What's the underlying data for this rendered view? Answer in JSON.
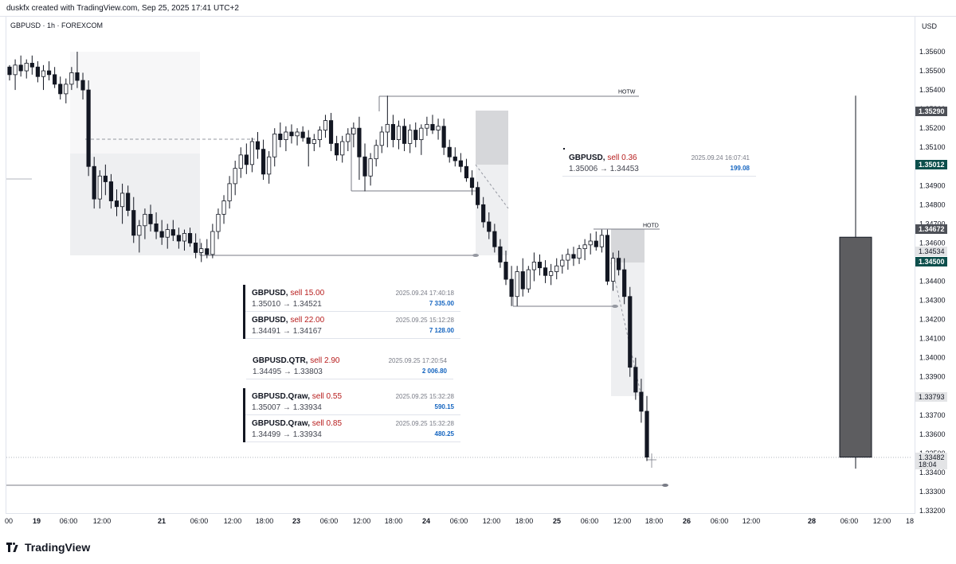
{
  "header": {
    "credit": "duskfx created with TradingView.com, Sep 25, 2025 17:41 UTC+2",
    "symbol_line": "GBPUSD · 1h · FOREXCOM",
    "currency": "USD"
  },
  "footer": {
    "brand": "TradingView"
  },
  "colors": {
    "up": "#ffffff",
    "down": "#131722",
    "red": "#b71c1c",
    "blue": "#1565c0",
    "price_tag": "#4d5057",
    "green_tag": "#0d4f4c"
  },
  "chart_data": {
    "type": "candlestick",
    "ylim": [
      1.3315,
      1.3572
    ],
    "y_ticks": [
      "1.35600",
      "1.35500",
      "1.35400",
      "1.35300",
      "1.35200",
      "1.35100",
      "1.35000",
      "1.34900",
      "1.34800",
      "1.34700",
      "1.34600",
      "1.34500",
      "1.34400",
      "1.34300",
      "1.34200",
      "1.34100",
      "1.34000",
      "1.33900",
      "1.33800",
      "1.33700",
      "1.33600",
      "1.33500",
      "1.33400",
      "1.33300",
      "1.33200"
    ],
    "x_labels": [
      "00",
      "19",
      "06:00",
      "12:00",
      "21",
      "06:00",
      "12:00",
      "18:00",
      "23",
      "06:00",
      "12:00",
      "18:00",
      "24",
      "06:00",
      "12:00",
      "18:00",
      "25",
      "06:00",
      "12:00",
      "18:00",
      "26",
      "06:00",
      "12:00",
      "28",
      "06:00",
      "12:00",
      "18"
    ],
    "price_tags": [
      {
        "text": "1.35290",
        "style": "dark"
      },
      {
        "text": "1.35012",
        "style": "green"
      },
      {
        "text": "1.34672",
        "style": "dark"
      },
      {
        "text": "1.34534",
        "style": "light"
      },
      {
        "text": "1.34500",
        "style": "green"
      },
      {
        "text": "1.33793",
        "style": "light"
      },
      {
        "text": "1.33482",
        "style": "light"
      },
      {
        "text": "18:04",
        "style": "light"
      }
    ],
    "level_labels": [
      {
        "text": "HOTW",
        "price": 1.3537
      },
      {
        "text": "HOTD",
        "price": 1.3467
      }
    ],
    "candles_phase1": [
      [
        1.3552,
        1.3553,
        1.3545,
        1.3548
      ],
      [
        1.3548,
        1.3556,
        1.354,
        1.3553
      ],
      [
        1.3553,
        1.3558,
        1.3547,
        1.355
      ],
      [
        1.355,
        1.3556,
        1.3546,
        1.3554
      ],
      [
        1.3554,
        1.3558,
        1.3548,
        1.3552
      ],
      [
        1.3552,
        1.3555,
        1.3544,
        1.3547
      ],
      [
        1.3547,
        1.3553,
        1.354,
        1.355
      ],
      [
        1.355,
        1.3555,
        1.3545,
        1.3548
      ],
      [
        1.3548,
        1.3552,
        1.3541,
        1.3543
      ],
      [
        1.3543,
        1.3547,
        1.3535,
        1.3538
      ],
      [
        1.3538,
        1.3546,
        1.3533,
        1.3543
      ],
      [
        1.3543,
        1.3552,
        1.354,
        1.3549
      ],
      [
        1.3549,
        1.356,
        1.3541,
        1.3545
      ],
      [
        1.3545,
        1.3549,
        1.3535,
        1.354
      ],
      [
        1.354,
        1.3545,
        1.3495,
        1.35
      ],
      [
        1.35,
        1.3505,
        1.3478,
        1.3483
      ],
      [
        1.3483,
        1.3498,
        1.3478,
        1.3495
      ],
      [
        1.3495,
        1.3501,
        1.3485,
        1.3492
      ],
      [
        1.3492,
        1.3496,
        1.3478,
        1.3482
      ],
      [
        1.3482,
        1.3488,
        1.3474,
        1.3479
      ],
      [
        1.3479,
        1.3491,
        1.347,
        1.3486
      ],
      [
        1.3486,
        1.349,
        1.3474,
        1.3477
      ],
      [
        1.3477,
        1.3484,
        1.346,
        1.3464
      ],
      [
        1.3464,
        1.3472,
        1.3455,
        1.3469
      ],
      [
        1.3469,
        1.3478,
        1.3462,
        1.3475
      ],
      [
        1.3475,
        1.348,
        1.3466,
        1.347
      ],
      [
        1.347,
        1.3476,
        1.3462,
        1.3466
      ],
      [
        1.3466,
        1.3472,
        1.3459,
        1.3463
      ],
      [
        1.3463,
        1.347,
        1.3457,
        1.3467
      ],
      [
        1.3467,
        1.3472,
        1.3461,
        1.3464
      ],
      [
        1.3464,
        1.3468,
        1.3457,
        1.3461
      ],
      [
        1.3461,
        1.3467,
        1.3456,
        1.3465
      ],
      [
        1.3465,
        1.3468,
        1.3458,
        1.346
      ],
      [
        1.346,
        1.3465,
        1.3452,
        1.3455
      ],
      [
        1.3455,
        1.346,
        1.345,
        1.3457
      ],
      [
        1.3457,
        1.3462,
        1.3452,
        1.3454
      ],
      [
        1.3454,
        1.347,
        1.3452,
        1.3466
      ],
      [
        1.3466,
        1.3478,
        1.3462,
        1.3475
      ],
      [
        1.3475,
        1.3485,
        1.347,
        1.3482
      ],
      [
        1.3482,
        1.3495,
        1.3478,
        1.3491
      ],
      [
        1.3491,
        1.3503,
        1.3485,
        1.3499
      ],
      [
        1.3499,
        1.351,
        1.3494,
        1.3506
      ],
      [
        1.3506,
        1.3512,
        1.3496,
        1.3501
      ],
      [
        1.3501,
        1.3515,
        1.3497,
        1.3513
      ],
      [
        1.3513,
        1.3518,
        1.3504,
        1.3509
      ],
      [
        1.3509,
        1.3514,
        1.3493,
        1.3496
      ],
      [
        1.3496,
        1.3508,
        1.3491,
        1.3505
      ],
      [
        1.3505,
        1.352,
        1.35,
        1.3517
      ],
      [
        1.3517,
        1.3523,
        1.351,
        1.3514
      ],
      [
        1.3514,
        1.3521,
        1.3508,
        1.3518
      ],
      [
        1.3518,
        1.3522,
        1.3512,
        1.3516
      ],
      [
        1.3516,
        1.352,
        1.3511,
        1.3518
      ],
      [
        1.3518,
        1.3521,
        1.3513,
        1.3515
      ],
      [
        1.3515,
        1.3519,
        1.35,
        1.3512
      ],
      [
        1.3512,
        1.3517,
        1.3508,
        1.3514
      ],
      [
        1.3514,
        1.3521,
        1.351,
        1.3519
      ],
      [
        1.3519,
        1.3527,
        1.3515,
        1.3524
      ],
      [
        1.3524,
        1.3528,
        1.3508,
        1.3512
      ],
      [
        1.3512,
        1.3516,
        1.3503,
        1.3506
      ],
      [
        1.3506,
        1.3516,
        1.3502,
        1.3513
      ],
      [
        1.3513,
        1.352,
        1.3508,
        1.3517
      ],
      [
        1.3517,
        1.3523,
        1.351,
        1.352
      ],
      [
        1.352,
        1.3526,
        1.3493,
        1.3505
      ],
      [
        1.3505,
        1.3512,
        1.3487,
        1.3495
      ],
      [
        1.3495,
        1.3507,
        1.349,
        1.3504
      ],
      [
        1.3504,
        1.3514,
        1.35,
        1.3511
      ],
      [
        1.3511,
        1.3521,
        1.3507,
        1.3518
      ],
      [
        1.3518,
        1.3537,
        1.351,
        1.3522
      ],
      [
        1.3522,
        1.3527,
        1.351,
        1.3514
      ],
      [
        1.3514,
        1.3524,
        1.3509,
        1.3521
      ],
      [
        1.3521,
        1.3525,
        1.3508,
        1.3512
      ],
      [
        1.3512,
        1.3522,
        1.3507,
        1.3519
      ],
      [
        1.3519,
        1.3523,
        1.351,
        1.3514
      ],
      [
        1.3514,
        1.3522,
        1.3506,
        1.352
      ],
      [
        1.352,
        1.3526,
        1.3516,
        1.3522
      ],
      [
        1.3522,
        1.3527,
        1.3517,
        1.3519
      ],
      [
        1.3519,
        1.3525,
        1.3514,
        1.3521
      ],
      [
        1.3521,
        1.3525,
        1.3506,
        1.351
      ],
      [
        1.351,
        1.3514,
        1.3502,
        1.3505
      ],
      [
        1.3505,
        1.351,
        1.35,
        1.3503
      ],
      [
        1.3503,
        1.3507,
        1.3497,
        1.35
      ],
      [
        1.35,
        1.3504,
        1.3492,
        1.3494
      ],
      [
        1.3494,
        1.3498,
        1.3485,
        1.3489
      ],
      [
        1.3489,
        1.3492,
        1.3478,
        1.348
      ],
      [
        1.348,
        1.3484,
        1.3468,
        1.3471
      ],
      [
        1.3471,
        1.3476,
        1.3462,
        1.3466
      ],
      [
        1.3466,
        1.347,
        1.3455,
        1.3458
      ],
      [
        1.3458,
        1.3462,
        1.3447,
        1.345
      ],
      [
        1.345,
        1.3456,
        1.3438,
        1.3441
      ],
      [
        1.3441,
        1.3448,
        1.3427,
        1.3432
      ],
      [
        1.3432,
        1.3448,
        1.3427,
        1.3445
      ],
      [
        1.3445,
        1.3452,
        1.3432,
        1.3436
      ],
      [
        1.3436,
        1.3448,
        1.3434,
        1.3446
      ],
      [
        1.3446,
        1.3455,
        1.344,
        1.345
      ],
      [
        1.345,
        1.3454,
        1.3443,
        1.3447
      ],
      [
        1.3447,
        1.3451,
        1.3439,
        1.3443
      ],
      [
        1.3443,
        1.3449,
        1.3438,
        1.3445
      ],
      [
        1.3445,
        1.3452,
        1.3441,
        1.3448
      ],
      [
        1.3448,
        1.3454,
        1.3444,
        1.3451
      ],
      [
        1.3451,
        1.3457,
        1.3446,
        1.3454
      ],
      [
        1.3454,
        1.3458,
        1.3448,
        1.3452
      ],
      [
        1.3452,
        1.3459,
        1.3449,
        1.3457
      ],
      [
        1.3457,
        1.3462,
        1.3451,
        1.3459
      ],
      [
        1.3459,
        1.3465,
        1.3454,
        1.3461
      ],
      [
        1.3461,
        1.3466,
        1.3456,
        1.3458
      ],
      [
        1.3458,
        1.3467,
        1.3455,
        1.3464
      ],
      [
        1.3464,
        1.3467,
        1.3438,
        1.344
      ],
      [
        1.344,
        1.3455,
        1.3435,
        1.3452
      ],
      [
        1.3452,
        1.3456,
        1.3443,
        1.3446
      ],
      [
        1.3446,
        1.3452,
        1.3428,
        1.3432
      ],
      [
        1.3432,
        1.3437,
        1.339,
        1.3395
      ],
      [
        1.3395,
        1.34,
        1.3378,
        1.3382
      ],
      [
        1.3382,
        1.3389,
        1.3366,
        1.3372
      ],
      [
        1.3372,
        1.338,
        1.3346,
        1.3348
      ]
    ],
    "candle_phase2": [
      1.3463,
      1.3537,
      1.3342,
      1.3348
    ],
    "trades": [
      {
        "symbol": "GBPUSD,",
        "side": "sell 0.36",
        "prices": "1.35006 → 1.34453",
        "time": "2025.09.24 16:07:41",
        "value": "199.08"
      },
      {
        "symbol": "GBPUSD,",
        "side": "sell 15.00",
        "prices": "1.35010 → 1.34521",
        "time": "2025.09.24 17:40:18",
        "value": "7 335.00"
      },
      {
        "symbol": "GBPUSD,",
        "side": "sell 22.00",
        "prices": "1.34491 → 1.34167",
        "time": "2025.09.25 15:12:28",
        "value": "7 128.00"
      },
      {
        "symbol": "GBPUSD.QTR,",
        "side": "sell 2.90",
        "prices": "1.34495 → 1.33803",
        "time": "2025.09.25 17:20:54",
        "value": "2 006.80"
      },
      {
        "symbol": "GBPUSD.Qraw,",
        "side": "sell 0.55",
        "prices": "1.35007 → 1.33934",
        "time": "2025.09.25 15:32:28",
        "value": "590.15"
      },
      {
        "symbol": "GBPUSD.Qraw,",
        "side": "sell 0.85",
        "prices": "1.34499 → 1.33934",
        "time": "2025.09.25 15:32:28",
        "value": "480.25"
      }
    ]
  }
}
